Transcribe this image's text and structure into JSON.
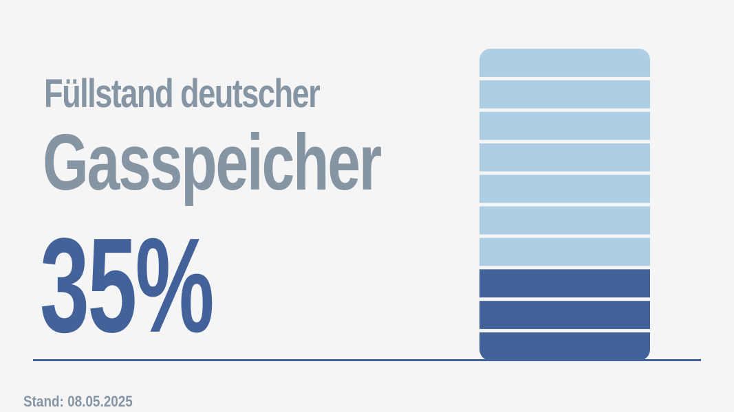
{
  "headline": {
    "line1": "Füllstand deutscher",
    "line2": "Gasspeicher"
  },
  "value_label": "35%",
  "footnote": "Stand: 08.05.2025",
  "colors": {
    "filled": "#436299",
    "empty": "#aecfe3",
    "headline": "#8695a3",
    "background": "#f5f5f5"
  },
  "chart_data": {
    "type": "bar",
    "fill_fraction": 0.35,
    "segments_total": 10,
    "segments_filled": 3,
    "value_label": "35%"
  }
}
